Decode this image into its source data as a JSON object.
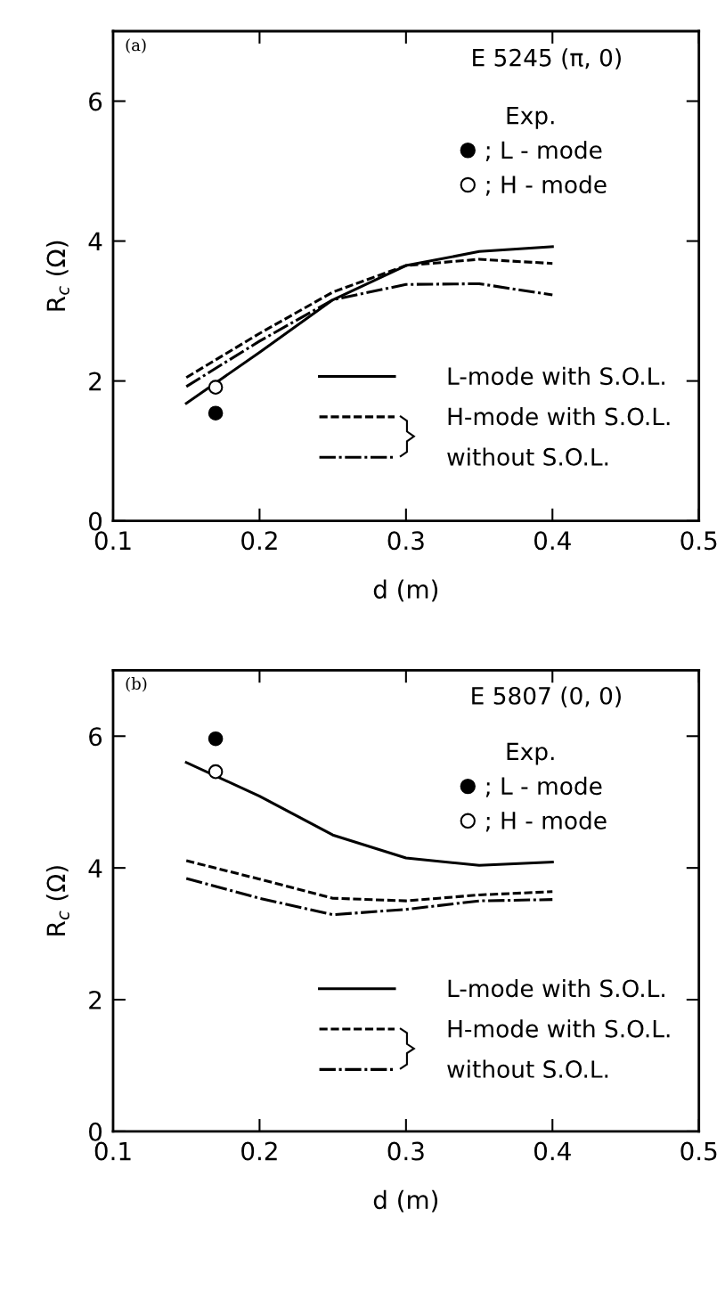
{
  "chart_data": [
    {
      "type": "line",
      "xlabel": "d (m)",
      "ylabel": "R$_{c}$ (Ω)",
      "annotations": [
        "(a)",
        "E 5245 (π, 0)"
      ],
      "legend_title": "Exp.",
      "legend": "bottom right",
      "xlim": [
        0.1,
        0.5
      ],
      "xticks": [
        0.1,
        0.2,
        0.3,
        0.4,
        0.5
      ],
      "ylim": [
        0,
        7
      ],
      "yticks": [
        0,
        2,
        4,
        6
      ],
      "grid": false,
      "marker": "none",
      "series": [
        {
          "name": "L-mode with S.O.L.",
          "color": "#000000",
          "line_style": "solid",
          "x": [
            0.15,
            0.2,
            0.25,
            0.3,
            0.35,
            0.4
          ],
          "values": [
            1.68,
            2.41,
            3.16,
            3.65,
            3.85,
            3.92
          ]
        },
        {
          "name": "H-mode with S.O.L.",
          "color": "#000000",
          "line_style": "dashed",
          "x": [
            0.15,
            0.2,
            0.25,
            0.3,
            0.35,
            0.4
          ],
          "values": [
            2.05,
            2.68,
            3.27,
            3.65,
            3.74,
            3.68
          ]
        },
        {
          "name": "without S.O.L.",
          "color": "#000000",
          "line_style": "dashdot",
          "x": [
            0.15,
            0.2,
            0.25,
            0.3,
            0.35,
            0.4
          ],
          "values": [
            1.92,
            2.57,
            3.16,
            3.38,
            3.39,
            3.23
          ]
        },
        {
          "name": "; L - mode",
          "type": "scatter",
          "marker": "circle",
          "color": "#000000",
          "x": [
            0.17
          ],
          "values": [
            1.54
          ]
        },
        {
          "name": "; H - mode",
          "type": "scatter",
          "marker": "circle",
          "color": "#ffffff",
          "x": [
            0.17
          ],
          "values": [
            1.91
          ]
        }
      ]
    },
    {
      "type": "line",
      "xlabel": "d (m)",
      "ylabel": "R$_{c}$ (Ω)",
      "annotations": [
        "(b)",
        "E 5807 (0, 0)"
      ],
      "legend_title": "Exp.",
      "legend": "bottom right",
      "xlim": [
        0.1,
        0.5
      ],
      "xticks": [
        0.1,
        0.2,
        0.3,
        0.4,
        0.5
      ],
      "ylim": [
        0,
        7
      ],
      "yticks": [
        0,
        2,
        4,
        6
      ],
      "grid": false,
      "marker": "none",
      "series": [
        {
          "name": "L-mode with S.O.L.",
          "color": "#000000",
          "line_style": "solid",
          "x": [
            0.15,
            0.2,
            0.25,
            0.3,
            0.35,
            0.4
          ],
          "values": [
            5.6,
            5.09,
            4.5,
            4.15,
            4.04,
            4.09
          ]
        },
        {
          "name": "H-mode with S.O.L.",
          "color": "#000000",
          "line_style": "dashed",
          "x": [
            0.15,
            0.2,
            0.25,
            0.3,
            0.35,
            0.4
          ],
          "values": [
            4.11,
            3.83,
            3.54,
            3.5,
            3.59,
            3.64
          ]
        },
        {
          "name": "without S.O.L.",
          "color": "#000000",
          "line_style": "dashdot",
          "x": [
            0.15,
            0.2,
            0.25,
            0.3,
            0.35,
            0.4
          ],
          "values": [
            3.84,
            3.54,
            3.29,
            3.37,
            3.5,
            3.52
          ]
        },
        {
          "name": "; L - mode",
          "type": "scatter",
          "marker": "circle",
          "color": "#000000",
          "x": [
            0.17
          ],
          "values": [
            5.96
          ]
        },
        {
          "name": "; H - mode",
          "type": "scatter",
          "marker": "circle",
          "color": "#ffffff",
          "x": [
            0.17
          ],
          "values": [
            5.46
          ]
        }
      ]
    }
  ]
}
